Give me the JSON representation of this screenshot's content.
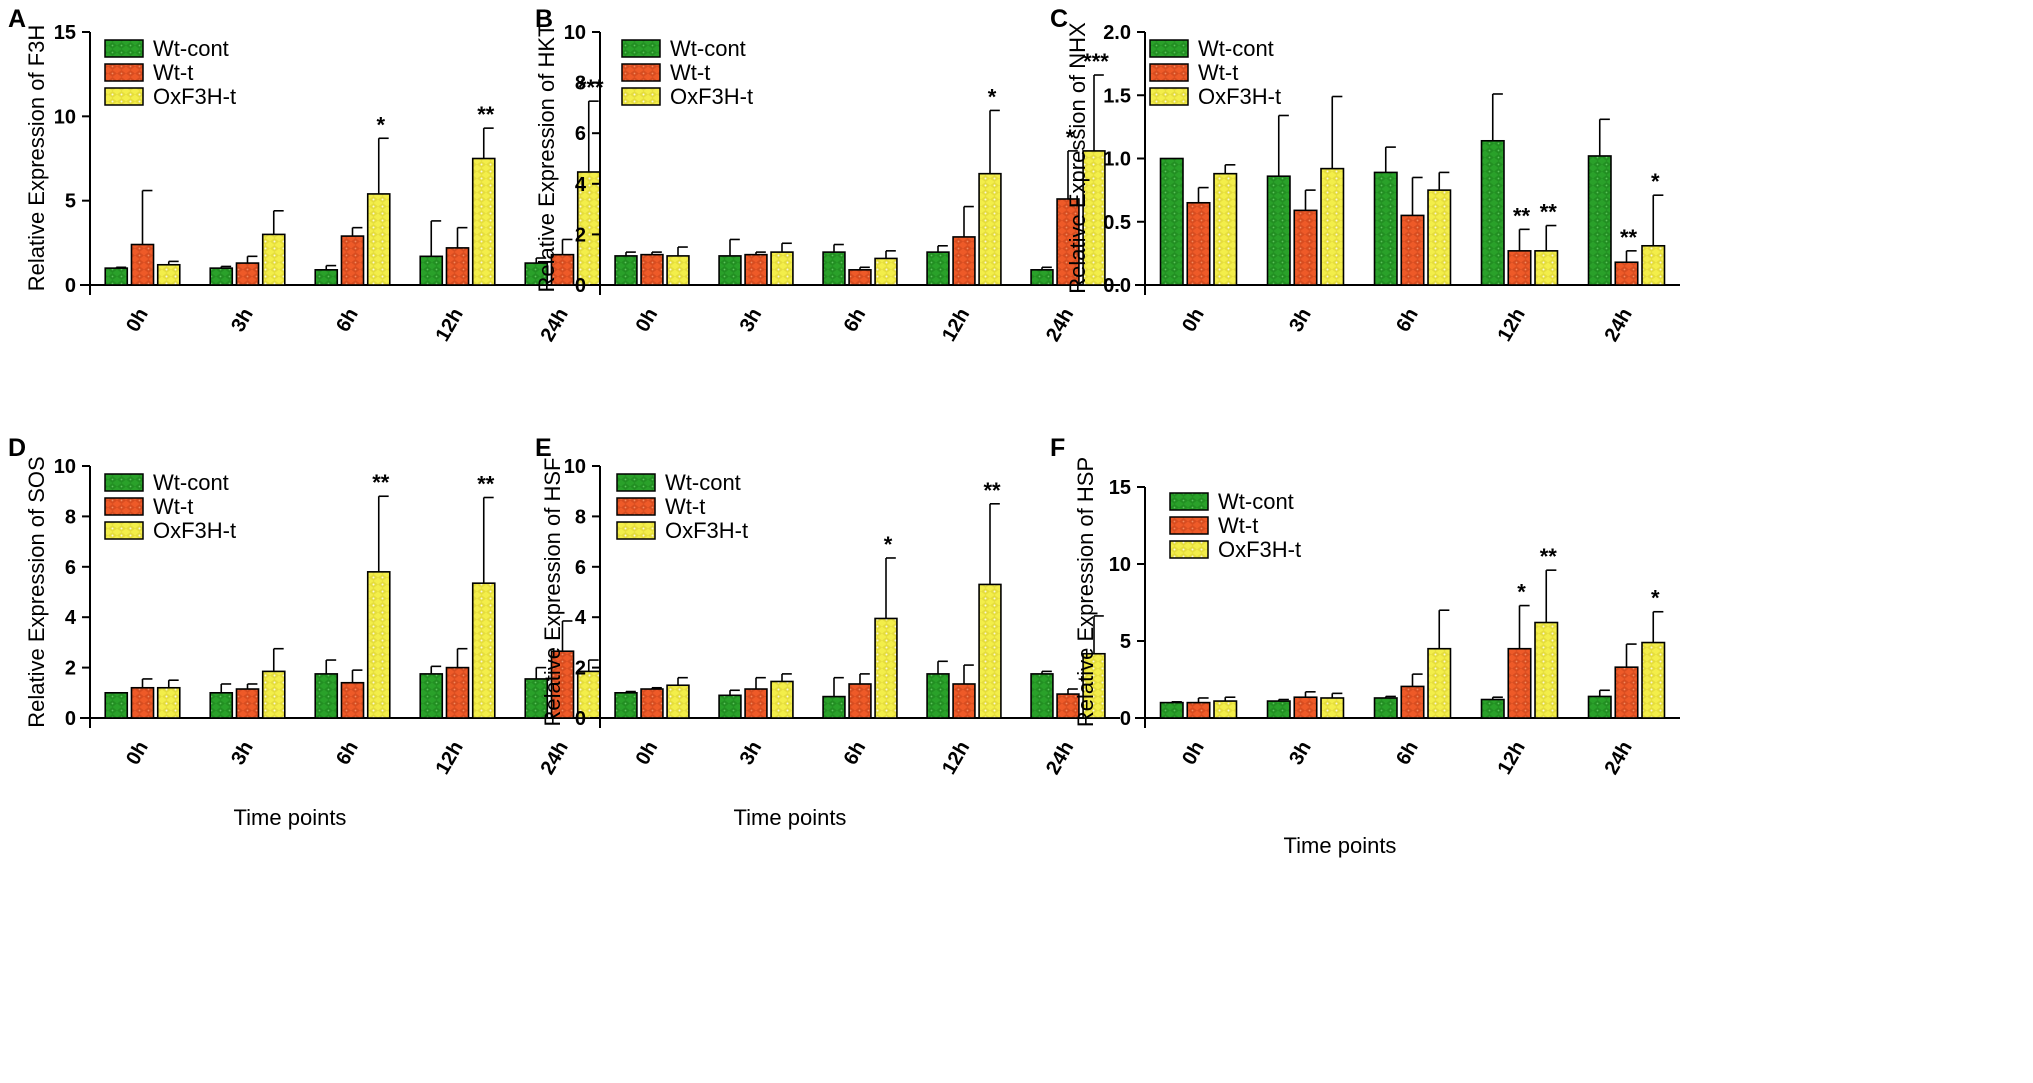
{
  "figure": {
    "shared_xlabel": "Time points",
    "legend": [
      "Wt-cont",
      "Wt-t",
      "OxF3H-t"
    ],
    "colors": {
      "Wt-cont": "#2aa12a",
      "Wt-t": "#ee5a28",
      "OxF3H-t": "#f3ee4a"
    }
  },
  "chart_data": [
    {
      "panel": "A",
      "type": "bar",
      "ylabel": "Relative Expression of F3H",
      "xlabel": "",
      "categories": [
        "0h",
        "3h",
        "6h",
        "12h",
        "24h"
      ],
      "ylim": [
        0,
        15
      ],
      "yticks": [
        0,
        5,
        10,
        15
      ],
      "series": [
        {
          "name": "Wt-cont",
          "values": [
            1.0,
            1.0,
            0.9,
            1.7,
            1.3
          ],
          "errors": [
            0.05,
            0.1,
            0.25,
            2.1,
            0.3
          ]
        },
        {
          "name": "Wt-t",
          "values": [
            2.4,
            1.3,
            2.9,
            2.2,
            1.8
          ],
          "errors": [
            3.2,
            0.4,
            0.5,
            1.2,
            0.9
          ]
        },
        {
          "name": "OxF3H-t",
          "values": [
            1.2,
            3.0,
            5.4,
            7.5,
            6.7
          ],
          "errors": [
            0.2,
            1.4,
            3.3,
            1.8,
            4.2
          ]
        }
      ],
      "annotations": [
        {
          "category": "6h",
          "series": "OxF3H-t",
          "text": "*"
        },
        {
          "category": "12h",
          "series": "OxF3H-t",
          "text": "**"
        },
        {
          "category": "24h",
          "series": "OxF3H-t",
          "text": "***"
        }
      ]
    },
    {
      "panel": "B",
      "type": "bar",
      "ylabel": "Relative Expression of HKT",
      "xlabel": "",
      "categories": [
        "0h",
        "3h",
        "6h",
        "12h",
        "24h"
      ],
      "ylim": [
        0,
        10
      ],
      "yticks": [
        0,
        2,
        4,
        6,
        8,
        10
      ],
      "series": [
        {
          "name": "Wt-cont",
          "values": [
            1.15,
            1.15,
            1.3,
            1.3,
            0.6
          ],
          "errors": [
            0.15,
            0.65,
            0.3,
            0.25,
            0.1
          ]
        },
        {
          "name": "Wt-t",
          "values": [
            1.2,
            1.2,
            0.6,
            1.9,
            3.4
          ],
          "errors": [
            0.1,
            0.1,
            0.1,
            1.2,
            1.9
          ]
        },
        {
          "name": "OxF3H-t",
          "values": [
            1.15,
            1.3,
            1.05,
            4.4,
            5.3
          ],
          "errors": [
            0.35,
            0.35,
            0.3,
            2.5,
            3.0
          ]
        }
      ],
      "annotations": [
        {
          "category": "12h",
          "series": "OxF3H-t",
          "text": "*"
        },
        {
          "category": "24h",
          "series": "Wt-t",
          "text": "*"
        },
        {
          "category": "24h",
          "series": "OxF3H-t",
          "text": "***"
        }
      ]
    },
    {
      "panel": "C",
      "type": "bar",
      "ylabel": "Relative Expression of NHX",
      "xlabel": "",
      "categories": [
        "0h",
        "3h",
        "6h",
        "12h",
        "24h"
      ],
      "ylim": [
        0,
        2.0
      ],
      "yticks": [
        "0.0",
        "0.5",
        "1.0",
        "1.5",
        "2.0"
      ],
      "series": [
        {
          "name": "Wt-cont",
          "values": [
            1.0,
            0.86,
            0.89,
            1.14,
            1.02
          ],
          "errors": [
            0.0,
            0.48,
            0.2,
            0.37,
            0.29
          ]
        },
        {
          "name": "Wt-t",
          "values": [
            0.65,
            0.59,
            0.55,
            0.27,
            0.18
          ],
          "errors": [
            0.12,
            0.16,
            0.3,
            0.17,
            0.09
          ]
        },
        {
          "name": "OxF3H-t",
          "values": [
            0.88,
            0.92,
            0.75,
            0.27,
            0.31
          ],
          "errors": [
            0.07,
            0.57,
            0.14,
            0.2,
            0.4
          ]
        }
      ],
      "annotations": [
        {
          "category": "12h",
          "series": "Wt-t",
          "text": "**"
        },
        {
          "category": "12h",
          "series": "OxF3H-t",
          "text": "**"
        },
        {
          "category": "24h",
          "series": "Wt-t",
          "text": "**"
        },
        {
          "category": "24h",
          "series": "OxF3H-t",
          "text": "*"
        }
      ]
    },
    {
      "panel": "D",
      "type": "bar",
      "ylabel": "Relative Expression of SOS",
      "xlabel": "Time points",
      "categories": [
        "0h",
        "3h",
        "6h",
        "12h",
        "24h"
      ],
      "ylim": [
        0,
        10
      ],
      "yticks": [
        0,
        2,
        4,
        6,
        8,
        10
      ],
      "series": [
        {
          "name": "Wt-cont",
          "values": [
            1.0,
            1.0,
            1.75,
            1.75,
            1.55
          ],
          "errors": [
            0.0,
            0.35,
            0.55,
            0.3,
            0.45
          ]
        },
        {
          "name": "Wt-t",
          "values": [
            1.2,
            1.15,
            1.4,
            2.0,
            2.65
          ],
          "errors": [
            0.35,
            0.2,
            0.5,
            0.75,
            1.2
          ]
        },
        {
          "name": "OxF3H-t",
          "values": [
            1.2,
            1.85,
            5.8,
            5.35,
            1.85
          ],
          "errors": [
            0.3,
            0.9,
            3.0,
            3.4,
            0.45
          ]
        }
      ],
      "annotations": [
        {
          "category": "6h",
          "series": "OxF3H-t",
          "text": "**"
        },
        {
          "category": "12h",
          "series": "OxF3H-t",
          "text": "**"
        }
      ]
    },
    {
      "panel": "E",
      "type": "bar",
      "ylabel": "Relative Expression of HSF",
      "xlabel": "Time points",
      "categories": [
        "0h",
        "3h",
        "6h",
        "12h",
        "24h"
      ],
      "ylim": [
        0,
        10
      ],
      "yticks": [
        0,
        2,
        4,
        6,
        8,
        10
      ],
      "series": [
        {
          "name": "Wt-cont",
          "values": [
            1.0,
            0.9,
            0.85,
            1.75,
            1.75
          ],
          "errors": [
            0.05,
            0.2,
            0.75,
            0.5,
            0.1
          ]
        },
        {
          "name": "Wt-t",
          "values": [
            1.15,
            1.15,
            1.35,
            1.35,
            0.95
          ],
          "errors": [
            0.05,
            0.45,
            0.4,
            0.75,
            0.2
          ]
        },
        {
          "name": "OxF3H-t",
          "values": [
            1.3,
            1.45,
            3.95,
            5.3,
            2.55
          ],
          "errors": [
            0.3,
            0.3,
            2.4,
            3.2,
            1.5
          ]
        }
      ],
      "annotations": [
        {
          "category": "6h",
          "series": "OxF3H-t",
          "text": "*"
        },
        {
          "category": "12h",
          "series": "OxF3H-t",
          "text": "**"
        }
      ]
    },
    {
      "panel": "F",
      "type": "bar",
      "ylabel": "Relative Expression of HSP",
      "xlabel": "Time points",
      "categories": [
        "0h",
        "3h",
        "6h",
        "12h",
        "24h"
      ],
      "ylim": [
        0,
        15
      ],
      "yticks": [
        0,
        5,
        10,
        15
      ],
      "series": [
        {
          "name": "Wt-cont",
          "values": [
            1.0,
            1.1,
            1.3,
            1.2,
            1.4
          ],
          "errors": [
            0.05,
            0.1,
            0.1,
            0.15,
            0.4
          ]
        },
        {
          "name": "Wt-t",
          "values": [
            1.0,
            1.35,
            2.05,
            4.5,
            3.3
          ],
          "errors": [
            0.3,
            0.35,
            0.8,
            2.8,
            1.5
          ]
        },
        {
          "name": "OxF3H-t",
          "values": [
            1.1,
            1.3,
            4.5,
            6.2,
            4.9
          ],
          "errors": [
            0.25,
            0.3,
            2.5,
            3.4,
            2.0
          ]
        }
      ],
      "annotations": [
        {
          "category": "12h",
          "series": "Wt-t",
          "text": "*"
        },
        {
          "category": "12h",
          "series": "OxF3H-t",
          "text": "**"
        },
        {
          "category": "24h",
          "series": "OxF3H-t",
          "text": "*"
        }
      ]
    }
  ]
}
